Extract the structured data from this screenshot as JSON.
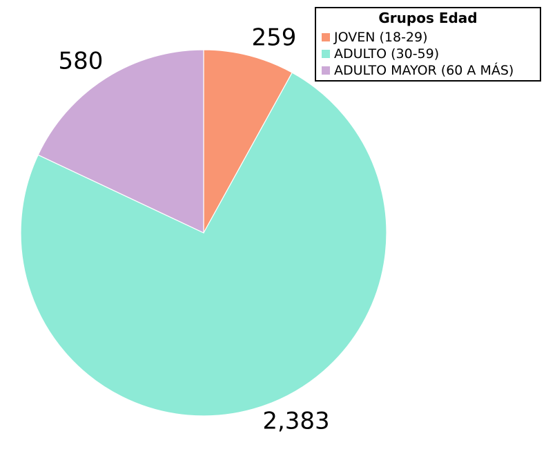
{
  "chart_data": {
    "type": "pie",
    "legend_title": "Grupos Edad",
    "legend_position": "top-right",
    "start_angle": "12 o'clock",
    "direction": "clockwise",
    "slices": [
      {
        "label": "JOVEN (18-29)",
        "value": 259,
        "value_label": "259",
        "color": "#f99572"
      },
      {
        "label": "ADULTO (30-59)",
        "value": 2383,
        "value_label": "2,383",
        "color": "#8deAd6"
      },
      {
        "label": "ADULTO MAYOR (60 A MÁS)",
        "value": 580,
        "value_label": "580",
        "color": "#cca9d7"
      }
    ]
  }
}
